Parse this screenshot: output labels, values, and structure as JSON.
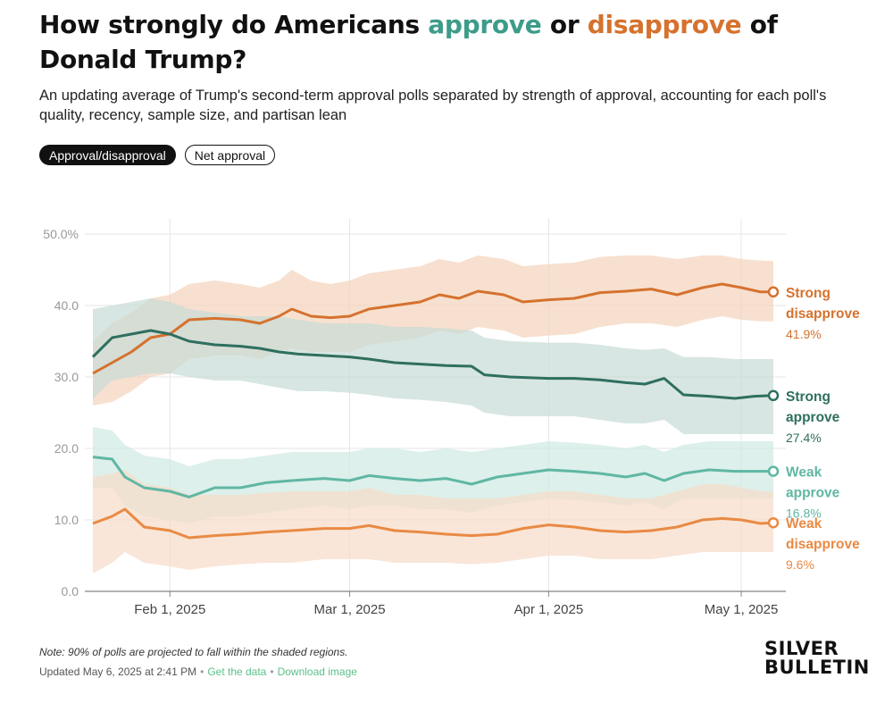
{
  "title": {
    "pre": "How strongly do Americans ",
    "approve": "approve",
    "mid": " or ",
    "disapprove": "disapprove",
    "post": " of Donald Trump?"
  },
  "subtitle": "An updating average of Trump's second-term approval polls separated by strength of approval, accounting for each poll's quality, recency, sample size, and partisan lean",
  "toggles": [
    {
      "label": "Approval/disapproval",
      "active": true
    },
    {
      "label": "Net approval",
      "active": false
    }
  ],
  "note": "Note: 90% of polls are projected to fall within the shaded regions.",
  "updated": "Updated May 6, 2025 at 2:41 PM",
  "get_data": "Get the data",
  "download_image": "Download image",
  "logo": {
    "line1": "SILVER",
    "line2": "BULLETIN"
  },
  "chart_data": {
    "type": "line",
    "x_unit": "date",
    "xlim": [
      "2025-01-20",
      "2025-05-06"
    ],
    "ylim": [
      0,
      50
    ],
    "y_ticks": [
      0,
      10,
      20,
      30,
      40,
      50
    ],
    "y_tick_labels": [
      "0.0",
      "10.0",
      "20.0",
      "30.0",
      "40.0",
      "50.0%"
    ],
    "x_ticks": [
      "2025-02-01",
      "2025-03-01",
      "2025-04-01",
      "2025-05-01"
    ],
    "x_tick_labels": [
      "Feb 1, 2025",
      "Mar 1, 2025",
      "Apr 1, 2025",
      "May 1, 2025"
    ],
    "grid": true,
    "series": [
      {
        "label_lines": [
          "Strong",
          "disapprove"
        ],
        "value_label": "41.9%",
        "color": "#d5722e",
        "band_color": "#f3d3bb",
        "points": [
          [
            "2025-01-20",
            30.5,
            26.0,
            35.0
          ],
          [
            "2025-01-23",
            32.0,
            26.5,
            37.5
          ],
          [
            "2025-01-26",
            33.5,
            28.0,
            39.0
          ],
          [
            "2025-01-29",
            35.5,
            30.0,
            41.0
          ],
          [
            "2025-02-01",
            36.0,
            30.5,
            41.5
          ],
          [
            "2025-02-04",
            38.0,
            32.5,
            43.0
          ],
          [
            "2025-02-08",
            38.2,
            33.0,
            43.5
          ],
          [
            "2025-02-12",
            38.0,
            33.0,
            43.0
          ],
          [
            "2025-02-15",
            37.5,
            32.5,
            42.5
          ],
          [
            "2025-02-18",
            38.5,
            33.5,
            43.5
          ],
          [
            "2025-02-20",
            39.5,
            34.0,
            45.0
          ],
          [
            "2025-02-23",
            38.5,
            33.5,
            43.5
          ],
          [
            "2025-02-26",
            38.3,
            33.5,
            43.0
          ],
          [
            "2025-03-01",
            38.5,
            33.5,
            43.5
          ],
          [
            "2025-03-04",
            39.5,
            34.5,
            44.5
          ],
          [
            "2025-03-08",
            40.0,
            35.0,
            45.0
          ],
          [
            "2025-03-12",
            40.5,
            35.5,
            45.5
          ],
          [
            "2025-03-15",
            41.5,
            36.5,
            46.5
          ],
          [
            "2025-03-18",
            41.0,
            36.0,
            46.0
          ],
          [
            "2025-03-21",
            42.0,
            37.0,
            47.0
          ],
          [
            "2025-03-25",
            41.5,
            36.5,
            46.5
          ],
          [
            "2025-03-28",
            40.5,
            35.5,
            45.5
          ],
          [
            "2025-04-01",
            40.8,
            35.8,
            45.8
          ],
          [
            "2025-04-05",
            41.0,
            36.0,
            46.0
          ],
          [
            "2025-04-09",
            41.8,
            37.0,
            46.8
          ],
          [
            "2025-04-13",
            42.0,
            37.5,
            47.0
          ],
          [
            "2025-04-17",
            42.3,
            37.5,
            47.0
          ],
          [
            "2025-04-21",
            41.5,
            37.0,
            46.5
          ],
          [
            "2025-04-25",
            42.5,
            38.0,
            47.0
          ],
          [
            "2025-04-28",
            43.0,
            38.5,
            47.0
          ],
          [
            "2025-05-01",
            42.5,
            38.0,
            46.5
          ],
          [
            "2025-05-04",
            41.9,
            37.8,
            46.3
          ],
          [
            "2025-05-06",
            41.9,
            37.8,
            46.2
          ]
        ]
      },
      {
        "label_lines": [
          "Strong",
          "approve"
        ],
        "value_label": "27.4%",
        "color": "#2f6f5f",
        "band_color": "#c6dcd6",
        "points": [
          [
            "2025-01-20",
            32.8,
            27.0,
            39.5
          ],
          [
            "2025-01-23",
            35.5,
            29.5,
            40.0
          ],
          [
            "2025-01-26",
            36.0,
            30.0,
            40.5
          ],
          [
            "2025-01-29",
            36.5,
            30.5,
            41.0
          ],
          [
            "2025-02-01",
            36.0,
            30.5,
            40.5
          ],
          [
            "2025-02-04",
            35.0,
            30.0,
            39.5
          ],
          [
            "2025-02-08",
            34.5,
            29.5,
            39.0
          ],
          [
            "2025-02-12",
            34.3,
            29.5,
            38.5
          ],
          [
            "2025-02-15",
            34.0,
            29.0,
            38.5
          ],
          [
            "2025-02-18",
            33.5,
            28.5,
            38.5
          ],
          [
            "2025-02-21",
            33.2,
            28.0,
            38.0
          ],
          [
            "2025-02-25",
            33.0,
            28.0,
            37.5
          ],
          [
            "2025-03-01",
            32.8,
            27.8,
            37.5
          ],
          [
            "2025-03-04",
            32.5,
            27.5,
            37.5
          ],
          [
            "2025-03-08",
            32.0,
            27.0,
            37.0
          ],
          [
            "2025-03-12",
            31.8,
            26.8,
            37.0
          ],
          [
            "2025-03-16",
            31.6,
            26.5,
            36.8
          ],
          [
            "2025-03-20",
            31.5,
            26.0,
            36.5
          ],
          [
            "2025-03-22",
            30.3,
            25.0,
            35.5
          ],
          [
            "2025-03-26",
            30.0,
            24.5,
            35.0
          ],
          [
            "2025-04-01",
            29.8,
            24.5,
            34.8
          ],
          [
            "2025-04-05",
            29.8,
            24.5,
            34.8
          ],
          [
            "2025-04-09",
            29.6,
            24.0,
            34.5
          ],
          [
            "2025-04-13",
            29.2,
            23.5,
            34.0
          ],
          [
            "2025-04-16",
            29.0,
            23.5,
            33.8
          ],
          [
            "2025-04-19",
            29.8,
            24.0,
            34.0
          ],
          [
            "2025-04-22",
            27.5,
            22.0,
            32.8
          ],
          [
            "2025-04-26",
            27.3,
            22.0,
            32.8
          ],
          [
            "2025-04-30",
            27.0,
            22.0,
            32.5
          ],
          [
            "2025-05-03",
            27.3,
            22.0,
            32.5
          ],
          [
            "2025-05-06",
            27.4,
            22.0,
            32.5
          ]
        ]
      },
      {
        "label_lines": [
          "Weak",
          "approve"
        ],
        "value_label": "16.8%",
        "color": "#5fb7a3",
        "band_color": "#cfe9e3",
        "points": [
          [
            "2025-01-20",
            18.8,
            14.5,
            23.0
          ],
          [
            "2025-01-23",
            18.5,
            14.5,
            22.5
          ],
          [
            "2025-01-25",
            16.0,
            12.0,
            20.5
          ],
          [
            "2025-01-28",
            14.5,
            10.5,
            19.0
          ],
          [
            "2025-02-01",
            14.0,
            10.0,
            18.5
          ],
          [
            "2025-02-04",
            13.2,
            9.5,
            17.5
          ],
          [
            "2025-02-08",
            14.5,
            10.5,
            18.5
          ],
          [
            "2025-02-12",
            14.5,
            10.5,
            18.5
          ],
          [
            "2025-02-16",
            15.2,
            11.0,
            19.0
          ],
          [
            "2025-02-20",
            15.5,
            11.5,
            19.5
          ],
          [
            "2025-02-25",
            15.8,
            12.0,
            19.5
          ],
          [
            "2025-03-01",
            15.5,
            11.5,
            19.5
          ],
          [
            "2025-03-04",
            16.2,
            12.0,
            20.0
          ],
          [
            "2025-03-08",
            15.8,
            12.0,
            20.0
          ],
          [
            "2025-03-12",
            15.5,
            11.5,
            19.5
          ],
          [
            "2025-03-16",
            15.8,
            11.5,
            20.0
          ],
          [
            "2025-03-20",
            15.0,
            11.0,
            19.5
          ],
          [
            "2025-03-24",
            16.0,
            12.0,
            20.0
          ],
          [
            "2025-03-28",
            16.5,
            12.5,
            20.5
          ],
          [
            "2025-04-01",
            17.0,
            13.0,
            21.0
          ],
          [
            "2025-04-05",
            16.8,
            12.8,
            20.8
          ],
          [
            "2025-04-09",
            16.5,
            12.5,
            20.5
          ],
          [
            "2025-04-13",
            16.0,
            12.0,
            20.0
          ],
          [
            "2025-04-16",
            16.5,
            12.5,
            20.5
          ],
          [
            "2025-04-19",
            15.5,
            11.5,
            19.5
          ],
          [
            "2025-04-22",
            16.5,
            13.0,
            20.5
          ],
          [
            "2025-04-26",
            17.0,
            13.0,
            21.0
          ],
          [
            "2025-04-30",
            16.8,
            13.0,
            21.0
          ],
          [
            "2025-05-03",
            16.8,
            13.0,
            21.0
          ],
          [
            "2025-05-06",
            16.8,
            13.0,
            21.0
          ]
        ]
      },
      {
        "label_lines": [
          "Weak",
          "disapprove"
        ],
        "value_label": "9.6%",
        "color": "#e98a44",
        "band_color": "#f7dcc8",
        "points": [
          [
            "2025-01-20",
            9.5,
            2.5,
            16.0
          ],
          [
            "2025-01-23",
            10.5,
            4.0,
            16.5
          ],
          [
            "2025-01-25",
            11.5,
            5.5,
            17.0
          ],
          [
            "2025-01-28",
            9.0,
            4.0,
            15.0
          ],
          [
            "2025-02-01",
            8.5,
            3.5,
            14.5
          ],
          [
            "2025-02-04",
            7.5,
            3.0,
            13.5
          ],
          [
            "2025-02-08",
            7.8,
            3.5,
            13.5
          ],
          [
            "2025-02-12",
            8.0,
            3.8,
            13.5
          ],
          [
            "2025-02-16",
            8.3,
            4.0,
            13.8
          ],
          [
            "2025-02-20",
            8.5,
            4.0,
            14.0
          ],
          [
            "2025-02-25",
            8.8,
            4.5,
            14.0
          ],
          [
            "2025-03-01",
            8.8,
            4.5,
            14.0
          ],
          [
            "2025-03-04",
            9.2,
            4.5,
            14.5
          ],
          [
            "2025-03-08",
            8.5,
            4.0,
            13.5
          ],
          [
            "2025-03-12",
            8.3,
            4.0,
            13.5
          ],
          [
            "2025-03-16",
            8.0,
            4.0,
            13.0
          ],
          [
            "2025-03-20",
            7.8,
            3.8,
            13.0
          ],
          [
            "2025-03-24",
            8.0,
            4.0,
            13.0
          ],
          [
            "2025-03-28",
            8.8,
            4.5,
            13.5
          ],
          [
            "2025-04-01",
            9.3,
            5.0,
            14.0
          ],
          [
            "2025-04-05",
            9.0,
            5.0,
            14.0
          ],
          [
            "2025-04-09",
            8.5,
            4.5,
            13.5
          ],
          [
            "2025-04-13",
            8.3,
            4.5,
            13.0
          ],
          [
            "2025-04-17",
            8.5,
            4.5,
            13.0
          ],
          [
            "2025-04-21",
            9.0,
            5.0,
            14.0
          ],
          [
            "2025-04-25",
            10.0,
            5.5,
            15.0
          ],
          [
            "2025-04-28",
            10.2,
            5.5,
            15.0
          ],
          [
            "2025-05-01",
            10.0,
            5.5,
            14.5
          ],
          [
            "2025-05-04",
            9.5,
            5.5,
            14.0
          ],
          [
            "2025-05-06",
            9.6,
            5.5,
            14.0
          ]
        ]
      }
    ]
  }
}
